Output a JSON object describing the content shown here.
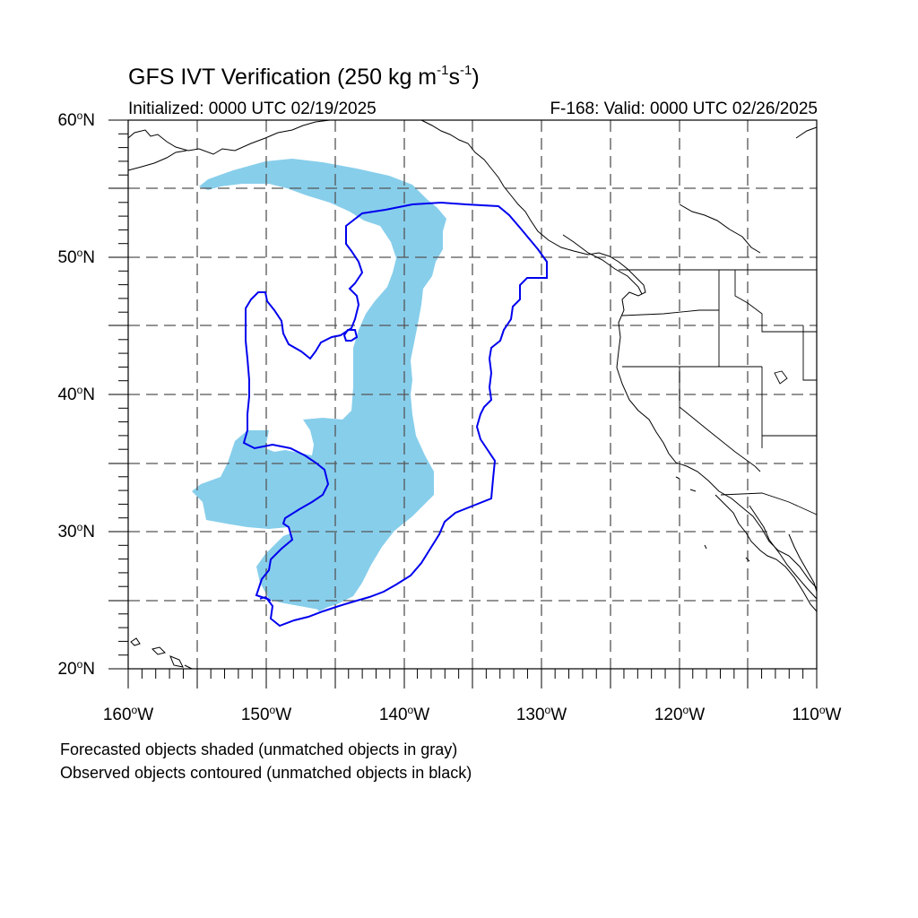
{
  "title": {
    "main": "GFS IVT Verification (250 kg m",
    "sup1": "-1",
    "mid": "s",
    "sup2": "-1",
    "end": ")"
  },
  "subtitle_left": "Initialized: 0000 UTC 02/19/2025",
  "subtitle_right": "F-168: Valid: 0000 UTC 02/26/2025",
  "footnotes": [
    "Forecasted objects shaded (unmatched objects in gray)",
    "Observed objects contoured (unmatched objects in black)"
  ],
  "map": {
    "lon_range": [
      -160,
      -110
    ],
    "lat_range": [
      20,
      60
    ],
    "lon_labels": [
      {
        "lon": -160,
        "num": "160",
        "dir": "W"
      },
      {
        "lon": -150,
        "num": "150",
        "dir": "W"
      },
      {
        "lon": -140,
        "num": "140",
        "dir": "W"
      },
      {
        "lon": -130,
        "num": "130",
        "dir": "W"
      },
      {
        "lon": -120,
        "num": "120",
        "dir": "W"
      },
      {
        "lon": -110,
        "num": "110",
        "dir": "W"
      }
    ],
    "lat_labels": [
      {
        "lat": 60,
        "num": "60",
        "dir": "N"
      },
      {
        "lat": 50,
        "num": "50",
        "dir": "N"
      },
      {
        "lat": 40,
        "num": "40",
        "dir": "N"
      },
      {
        "lat": 30,
        "num": "30",
        "dir": "N"
      },
      {
        "lat": 20,
        "num": "20",
        "dir": "N"
      }
    ],
    "grid_lons": [
      -155,
      -150,
      -145,
      -140,
      -135,
      -130,
      -125,
      -120,
      -115
    ],
    "grid_lats": [
      25,
      30,
      35,
      40,
      45,
      50,
      55
    ],
    "forecast_fill_color": "#87ceeb",
    "observed_contour_color": "#0000ee",
    "coastline_color": "#000000"
  }
}
